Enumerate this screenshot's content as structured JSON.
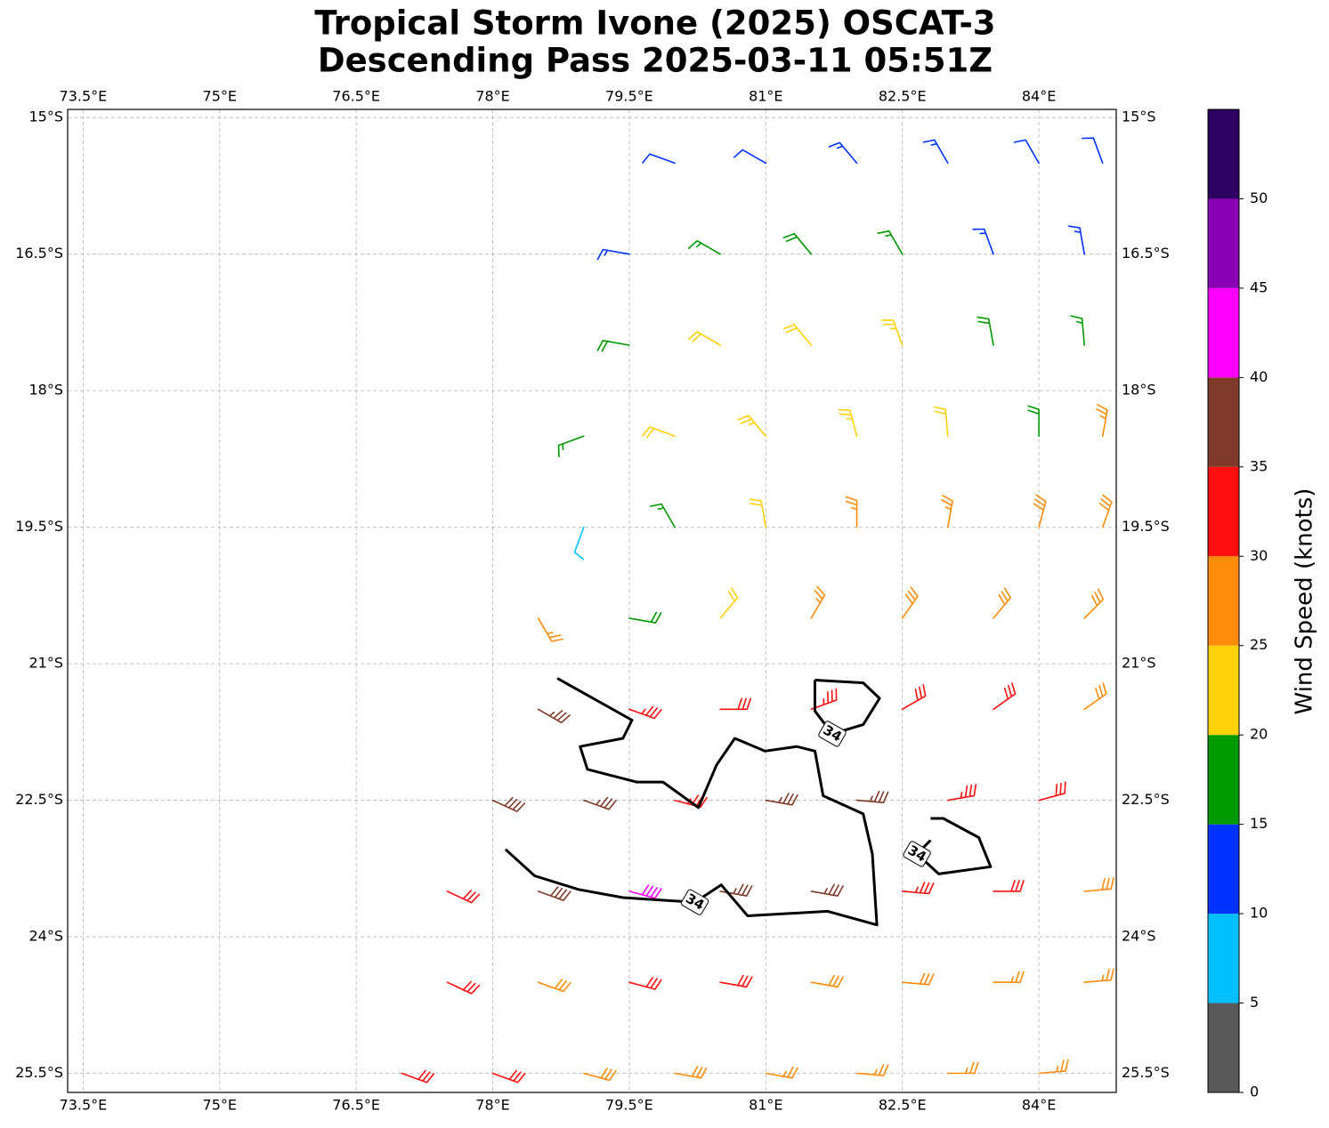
{
  "chart_data": {
    "type": "wind-barb-map",
    "title": [
      "Tropical Storm Ivone (2025) OSCAT-3",
      "Descending Pass 2025-03-11 05:51Z"
    ],
    "xlim": [
      73.33,
      84.85
    ],
    "ylim": [
      -25.71,
      -14.91
    ],
    "xticks": [
      {
        "value": 73.5,
        "label": "73.5°E"
      },
      {
        "value": 75,
        "label": "75°E"
      },
      {
        "value": 76.5,
        "label": "76.5°E"
      },
      {
        "value": 78,
        "label": "78°E"
      },
      {
        "value": 79.5,
        "label": "79.5°E"
      },
      {
        "value": 81,
        "label": "81°E"
      },
      {
        "value": 82.5,
        "label": "82.5°E"
      },
      {
        "value": 84,
        "label": "84°E"
      }
    ],
    "yticks": [
      {
        "value": -15,
        "label": "15°S"
      },
      {
        "value": -16.5,
        "label": "16.5°S"
      },
      {
        "value": -18,
        "label": "18°S"
      },
      {
        "value": -19.5,
        "label": "19.5°S"
      },
      {
        "value": -21,
        "label": "21°S"
      },
      {
        "value": -22.5,
        "label": "22.5°S"
      },
      {
        "value": -24,
        "label": "24°S"
      },
      {
        "value": -25.5,
        "label": "25.5°S"
      }
    ],
    "grid": true,
    "colorbar": {
      "label": "Wind Speed (knots)",
      "bounds": [
        0,
        5,
        10,
        15,
        20,
        25,
        30,
        35,
        40,
        45,
        50,
        55
      ],
      "ticks": [
        0,
        5,
        10,
        15,
        20,
        25,
        30,
        35,
        40,
        45,
        50
      ],
      "colors": [
        "#595959",
        "#00bfff",
        "#0033ff",
        "#009900",
        "#ffd20a",
        "#ff8c0a",
        "#ff1010",
        "#803a2a",
        "#ff00ff",
        "#8a00b5",
        "#2b0060"
      ]
    },
    "barbs": {
      "lon": [
        80,
        81,
        82,
        83,
        84,
        84.7,
        79.5,
        80.5,
        81.5,
        82.5,
        83.5,
        84.5,
        79.5,
        80.5,
        81.5,
        82.5,
        83.5,
        84.5,
        79,
        80,
        81,
        82,
        83,
        84,
        84.7,
        79,
        80,
        81,
        82,
        83,
        84,
        84.7,
        78.5,
        79.5,
        80.5,
        81.5,
        82.5,
        83.5,
        84.5,
        78.5,
        79.5,
        80.5,
        81.5,
        82.5,
        83.5,
        84.5,
        78,
        79,
        80,
        81,
        82,
        83,
        84,
        77.5,
        78.5,
        79.5,
        80.5,
        81.5,
        82.5,
        83.5,
        84.5,
        77.5,
        78.5,
        79.5,
        80.5,
        81.5,
        82.5,
        83.5,
        84.5,
        77,
        78,
        79,
        80,
        81,
        82,
        83,
        84
      ],
      "lat": [
        -15.5,
        -15.5,
        -15.5,
        -15.5,
        -15.5,
        -15.5,
        -16.5,
        -16.5,
        -16.5,
        -16.5,
        -16.5,
        -16.5,
        -17.5,
        -17.5,
        -17.5,
        -17.5,
        -17.5,
        -17.5,
        -18.5,
        -18.5,
        -18.5,
        -18.5,
        -18.5,
        -18.5,
        -18.5,
        -19.5,
        -19.5,
        -19.5,
        -19.5,
        -19.5,
        -19.5,
        -19.5,
        -20.5,
        -20.5,
        -20.5,
        -20.5,
        -20.5,
        -20.5,
        -20.5,
        -21.5,
        -21.5,
        -21.5,
        -21.5,
        -21.5,
        -21.5,
        -21.5,
        -22.5,
        -22.5,
        -22.5,
        -22.5,
        -22.5,
        -22.5,
        -22.5,
        -23.5,
        -23.5,
        -23.5,
        -23.5,
        -23.5,
        -23.5,
        -23.5,
        -23.5,
        -24.5,
        -24.5,
        -24.5,
        -24.5,
        -24.5,
        -24.5,
        -24.5,
        -24.5,
        -25.5,
        -25.5,
        -25.5,
        -25.5,
        -25.5,
        -25.5,
        -25.5,
        -25.5
      ],
      "speed": [
        12,
        10,
        13,
        13,
        11,
        12,
        13,
        16,
        18,
        16,
        14,
        13,
        18,
        20,
        22,
        23,
        18,
        16,
        17,
        20,
        23,
        24,
        22,
        19,
        27,
        8,
        15,
        22,
        25,
        27,
        28,
        29,
        26,
        18,
        22,
        26,
        28,
        29,
        28,
        37,
        34,
        32,
        33,
        30,
        31,
        29,
        38,
        36,
        34,
        37,
        36,
        33,
        32,
        32,
        38,
        40,
        37,
        36,
        33,
        31,
        28,
        32,
        29,
        30,
        31,
        29,
        28,
        27,
        26,
        30,
        31,
        28,
        28,
        27,
        27,
        26,
        25
      ],
      "direction": [
        290,
        300,
        320,
        330,
        330,
        340,
        280,
        300,
        320,
        330,
        340,
        350,
        280,
        300,
        320,
        340,
        350,
        355,
        250,
        290,
        320,
        345,
        355,
        0,
        10,
        200,
        330,
        350,
        0,
        10,
        15,
        20,
        150,
        100,
        40,
        30,
        35,
        40,
        45,
        120,
        110,
        90,
        70,
        60,
        55,
        55,
        115,
        110,
        105,
        100,
        95,
        80,
        75,
        115,
        110,
        105,
        100,
        100,
        95,
        90,
        85,
        115,
        110,
        105,
        100,
        100,
        95,
        90,
        85,
        110,
        110,
        105,
        100,
        100,
        95,
        90,
        85
      ]
    },
    "contour": {
      "level": 34,
      "lines": [
        {
          "lon": [
            78.71,
            79.53,
            79.43,
            78.96,
            79.04,
            79.58,
            79.87,
            80.26,
            80.46,
            80.66,
            80.99,
            81.34,
            81.54,
            81.63,
            82.07,
            82.17,
            82.22,
            81.68,
            80.8,
            80.51,
            80.22,
            79.43,
            78.94,
            78.46,
            78.14
          ],
          "lat": [
            -21.16,
            -21.62,
            -21.82,
            -21.91,
            -22.16,
            -22.3,
            -22.3,
            -22.58,
            -22.11,
            -21.82,
            -21.96,
            -21.91,
            -21.96,
            -22.45,
            -22.65,
            -23.09,
            -23.87,
            -23.72,
            -23.77,
            -23.43,
            -23.62,
            -23.57,
            -23.48,
            -23.33,
            -23.04
          ]
        },
        {
          "lon": [
            81.54,
            82.07,
            82.25,
            82.07,
            81.73,
            81.54,
            81.54
          ],
          "lat": [
            -21.18,
            -21.21,
            -21.38,
            -21.67,
            -21.77,
            -21.52,
            -21.18
          ]
        },
        {
          "lon": [
            82.81,
            82.95,
            83.34,
            83.47,
            82.9,
            82.66,
            82.81
          ],
          "lat": [
            -22.7,
            -22.7,
            -22.91,
            -23.23,
            -23.31,
            -23.09,
            -22.94
          ]
        }
      ]
    }
  }
}
